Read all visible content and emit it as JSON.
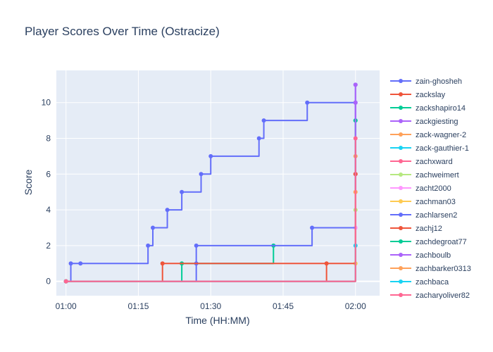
{
  "chart_data": {
    "type": "line",
    "line_shape": "step",
    "title": "Player Scores Over Time (Ostracize)",
    "xlabel": "Time (HH:MM)",
    "ylabel": "Score",
    "x_unit": "HH:MM",
    "xlim": [
      "00:58",
      "02:05"
    ],
    "ylim": [
      -0.8,
      11.8
    ],
    "x_ticks": [
      "01:00",
      "01:15",
      "01:30",
      "01:45",
      "02:00"
    ],
    "y_ticks": [
      0,
      2,
      4,
      6,
      8,
      10
    ],
    "grid": true,
    "legend_position": "right",
    "plot_background": "#e5ecf6",
    "series": [
      {
        "name": "zain-ghosheh",
        "color": "#636efa",
        "points": [
          [
            "01:00",
            0
          ],
          [
            "01:01",
            1
          ],
          [
            "01:03",
            1
          ],
          [
            "01:17",
            2
          ],
          [
            "01:18",
            3
          ],
          [
            "01:21",
            4
          ],
          [
            "01:24",
            5
          ],
          [
            "01:28",
            6
          ],
          [
            "01:30",
            7
          ],
          [
            "01:40",
            8
          ],
          [
            "01:41",
            9
          ],
          [
            "01:50",
            10
          ],
          [
            "02:00",
            11
          ]
        ]
      },
      {
        "name": "zackslay",
        "color": "#ef553b",
        "points": [
          [
            "01:00",
            0
          ],
          [
            "01:54",
            1
          ]
        ]
      },
      {
        "name": "zackshapiro14",
        "color": "#00cc96",
        "points": [
          [
            "01:00",
            0
          ],
          [
            "01:24",
            1
          ],
          [
            "01:43",
            2
          ]
        ]
      },
      {
        "name": "zackgiesting",
        "color": "#ab63fa",
        "points": [
          [
            "01:00",
            0
          ],
          [
            "02:00",
            11
          ]
        ]
      },
      {
        "name": "zack-wagner-2",
        "color": "#ffa15a",
        "points": [
          [
            "01:00",
            0
          ],
          [
            "02:00",
            7
          ]
        ]
      },
      {
        "name": "zack-gauthier-1",
        "color": "#19d3f3",
        "points": [
          [
            "01:00",
            0
          ],
          [
            "02:00",
            9
          ]
        ]
      },
      {
        "name": "zachxward",
        "color": "#ff6692",
        "points": [
          [
            "01:00",
            0
          ],
          [
            "02:00",
            6
          ]
        ]
      },
      {
        "name": "zachweimert",
        "color": "#b6e880",
        "points": [
          [
            "01:00",
            0
          ],
          [
            "02:00",
            4
          ]
        ]
      },
      {
        "name": "zacht2000",
        "color": "#ff97ff",
        "points": [
          [
            "01:00",
            0
          ],
          [
            "02:00",
            3
          ]
        ]
      },
      {
        "name": "zachman03",
        "color": "#fecb52",
        "points": [
          [
            "01:00",
            0
          ],
          [
            "02:00",
            1
          ]
        ]
      },
      {
        "name": "zachlarsen2",
        "color": "#636efa",
        "points": [
          [
            "01:00",
            0
          ],
          [
            "01:27",
            1
          ],
          [
            "01:27",
            2
          ],
          [
            "01:51",
            3
          ],
          [
            "02:00",
            10
          ]
        ]
      },
      {
        "name": "zachj12",
        "color": "#ef553b",
        "points": [
          [
            "01:00",
            0
          ],
          [
            "01:20",
            1
          ],
          [
            "02:00",
            6
          ]
        ]
      },
      {
        "name": "zachdegroat77",
        "color": "#00cc96",
        "points": [
          [
            "01:00",
            0
          ],
          [
            "02:00",
            9
          ]
        ]
      },
      {
        "name": "zachboulb",
        "color": "#ab63fa",
        "points": [
          [
            "01:00",
            0
          ],
          [
            "02:00",
            10
          ]
        ]
      },
      {
        "name": "zachbarker0313",
        "color": "#ffa15a",
        "points": [
          [
            "01:00",
            0
          ],
          [
            "02:00",
            5
          ]
        ]
      },
      {
        "name": "zachbaca",
        "color": "#19d3f3",
        "points": [
          [
            "01:00",
            0
          ],
          [
            "02:00",
            2
          ]
        ]
      },
      {
        "name": "zacharyoliver82",
        "color": "#ff6692",
        "points": [
          [
            "01:00",
            0
          ],
          [
            "02:00",
            8
          ]
        ]
      }
    ]
  }
}
